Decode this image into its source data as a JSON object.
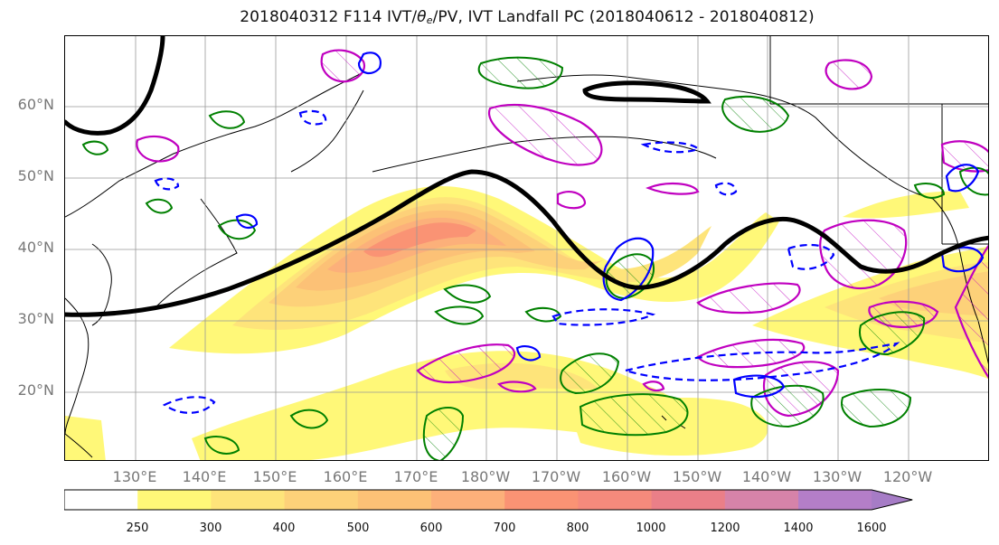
{
  "title": {
    "prefix": "2018040312 F114 IVT/",
    "theta": "θ",
    "sub": "e",
    "suffix": "/PV, IVT Landfall PC (2018040612 - 2018040812)"
  },
  "map": {
    "lat_labels": [
      "60°N",
      "50°N",
      "40°N",
      "30°N",
      "20°N"
    ],
    "lon_labels": [
      "130°E",
      "140°E",
      "150°E",
      "160°E",
      "170°E",
      "180°W",
      "170°W",
      "160°W",
      "150°W",
      "140°W",
      "130°W",
      "120°W"
    ],
    "colors": {
      "theta_e_contour": "#000000",
      "pv_positive": "#008000",
      "pv_negative": "#0000ff",
      "landfall_pc": "#c000c0",
      "coastline": "#000000",
      "grid": "#999999"
    }
  },
  "colorbar": {
    "labels": [
      "250",
      "300",
      "400",
      "500",
      "600",
      "700",
      "800",
      "1000",
      "1200",
      "1400",
      "1600"
    ],
    "colors": [
      "#ffffff",
      "#fff878",
      "#fee47a",
      "#fdd179",
      "#fcc176",
      "#fcb07a",
      "#fa9374",
      "#f58a7c",
      "#ea7f88",
      "#d683a9",
      "#b47ec8",
      "#a67cc6"
    ],
    "extend": "max"
  }
}
